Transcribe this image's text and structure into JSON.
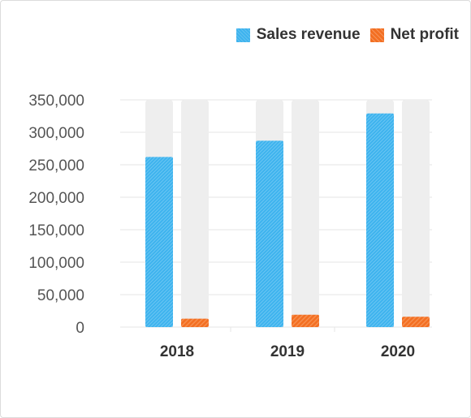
{
  "legend": {
    "sales_label": "Sales revenue",
    "profit_label": "Net profit"
  },
  "colors": {
    "sales": "#3db3ee",
    "profit": "#f36f22",
    "track": "#eeeeee",
    "grid": "#e6e6e6",
    "tick_text": "#555555",
    "category_text": "#333333"
  },
  "chart_data": {
    "type": "bar",
    "categories": [
      "2018",
      "2019",
      "2020"
    ],
    "series": [
      {
        "name": "Sales revenue",
        "values": [
          262000,
          287000,
          329000
        ]
      },
      {
        "name": "Net profit",
        "values": [
          13000,
          19000,
          16000
        ]
      }
    ],
    "yticks": [
      "0",
      "50,000",
      "100,000",
      "150,000",
      "200,000",
      "250,000",
      "300,000",
      "350,000"
    ],
    "ylim": [
      0,
      350000
    ],
    "grid": true,
    "legend_position": "top-right"
  }
}
